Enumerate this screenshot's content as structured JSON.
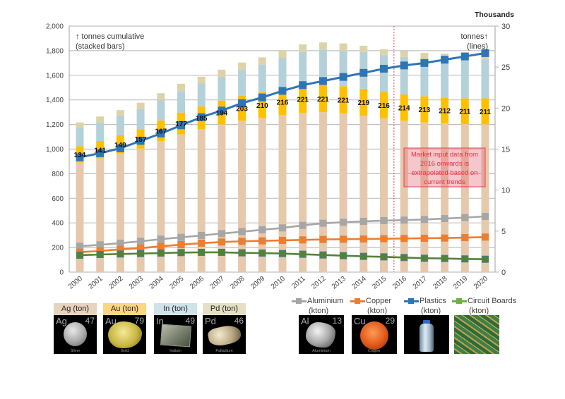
{
  "chart_data": {
    "type": "bar",
    "subtype": "stacked bars with line series on secondary axis",
    "categories": [
      "2000",
      "2001",
      "2002",
      "2003",
      "2004",
      "2005",
      "2006",
      "2007",
      "2008",
      "2009",
      "2010",
      "2011",
      "2012",
      "2013",
      "2014",
      "2015",
      "2016",
      "2017",
      "2018",
      "2019",
      "2020"
    ],
    "left_axis": {
      "ylim": [
        0,
        2000
      ],
      "ticks": [
        0,
        200,
        400,
        600,
        800,
        1000,
        1200,
        1400,
        1600,
        1800,
        2000
      ],
      "tick_labels": [
        "0",
        "200",
        "400",
        "600",
        "800",
        "1,000",
        "1,200",
        "1,400",
        "1,600",
        "1,800",
        "2,000"
      ],
      "title_lines": [
        "↑ tonnes cumulative",
        "(stacked bars)"
      ]
    },
    "right_axis": {
      "ylim": [
        0,
        30
      ],
      "ticks": [
        0,
        5,
        10,
        15,
        20,
        25,
        30
      ],
      "tick_labels": [
        "0",
        "5",
        "10",
        "15",
        "20",
        "25",
        "30"
      ],
      "units_label": "Thousands",
      "title_lines": [
        "tonnes↑",
        "(lines)"
      ]
    },
    "grid": true,
    "legend_position": "bottom",
    "bar_series": [
      {
        "name": "Ag (ton)",
        "color": "#e6c9ad",
        "values": [
          890,
          925,
          964,
          1004,
          1066,
          1120,
          1163,
          1200,
          1230,
          1253,
          1276,
          1295,
          1300,
          1290,
          1272,
          1250,
          1230,
          1216,
          1208,
          1203,
          1202
        ]
      },
      {
        "name": "Au (ton)",
        "color": "#ffc000",
        "values": [
          134,
          141,
          149,
          157,
          167,
          177,
          185,
          194,
          203,
          210,
          216,
          221,
          221,
          221,
          219,
          216,
          214,
          213,
          212,
          211,
          211
        ]
      },
      {
        "name": "In (ton)",
        "color": "#b4d1d9",
        "values": [
          147,
          151,
          156,
          164,
          167,
          174,
          185,
          193,
          211,
          224,
          250,
          276,
          289,
          289,
          299,
          296,
          305,
          301,
          310,
          311,
          312
        ]
      },
      {
        "name": "Pd (ton)",
        "color": "#dcd4a8",
        "values": [
          46,
          48,
          48,
          52,
          54,
          60,
          55,
          59,
          60,
          59,
          62,
          59,
          57,
          59,
          50,
          49,
          48,
          52,
          46,
          47,
          40
        ]
      }
    ],
    "bar_data_labels": {
      "series": "Au (ton)",
      "labels": [
        "134",
        "141",
        "149",
        "157",
        "167",
        "177",
        "185",
        "194",
        "203",
        "210",
        "216",
        "221",
        "221",
        "221",
        "219",
        "216",
        "214",
        "213",
        "212",
        "211",
        "211"
      ]
    },
    "line_series": [
      {
        "name": "Aluminium (kton)",
        "color": "#a6a6a6",
        "marker_edge": "#a6a6a6",
        "values": [
          3.16,
          3.33,
          3.53,
          3.76,
          4.02,
          4.24,
          4.47,
          4.7,
          4.93,
          5.16,
          5.39,
          5.7,
          5.96,
          6.08,
          6.19,
          6.28,
          6.34,
          6.42,
          6.53,
          6.65,
          6.79
        ]
      },
      {
        "name": "Copper (kton)",
        "color": "#ed7d31",
        "marker_edge": "#ed7d31",
        "values": [
          2.43,
          2.58,
          2.78,
          2.92,
          3.15,
          3.35,
          3.53,
          3.67,
          3.76,
          3.81,
          3.87,
          3.93,
          3.98,
          4.01,
          4.04,
          4.07,
          4.1,
          4.13,
          4.15,
          4.21,
          4.27
        ]
      },
      {
        "name": "Circuit Boards (kton)",
        "color": "#548235",
        "marker_edge": "#3e7f8f",
        "values": [
          2.06,
          2.15,
          2.21,
          2.26,
          2.32,
          2.38,
          2.41,
          2.41,
          2.35,
          2.32,
          2.26,
          2.18,
          2.09,
          2.0,
          1.92,
          1.86,
          1.78,
          1.69,
          1.66,
          1.61,
          1.57
        ]
      },
      {
        "name": "Plastics (kton)",
        "color": "#2e75b6",
        "marker_edge": "#2e75b6",
        "values": [
          14.0,
          14.5,
          15.1,
          16.0,
          16.9,
          17.9,
          18.9,
          19.7,
          20.6,
          21.3,
          22.1,
          22.8,
          23.3,
          23.8,
          24.3,
          24.8,
          25.2,
          25.5,
          25.9,
          26.3,
          26.7
        ]
      }
    ],
    "annotation": {
      "starts_at_category": "2016",
      "lines": [
        "Market input data from",
        "2016 onwards  is",
        "extrapolated based on",
        "current trends"
      ],
      "text_color": "#e8303a",
      "border_color": "#e84050"
    }
  },
  "legend": {
    "bars": [
      {
        "label": "Ag (ton)",
        "header_color": "#e8d3bf",
        "symbol": "Ag",
        "number": "47",
        "caption": "Silver"
      },
      {
        "label": "Au (ton)",
        "header_color": "#fcd684",
        "symbol": "Au",
        "number": "79",
        "caption": "Gold"
      },
      {
        "label": "In (ton)",
        "header_color": "#d0e3e9",
        "symbol": "In",
        "number": "49",
        "caption": "Indium"
      },
      {
        "label": "Pd (ton)",
        "header_color": "#e4e0c4",
        "symbol": "Pd",
        "number": "46",
        "caption": "Palladium"
      }
    ],
    "lines": [
      {
        "label": "Aluminium",
        "unit": "(kton)",
        "color": "#a6a6a6",
        "symbol": "Al",
        "number": "13",
        "caption": "Aluminium"
      },
      {
        "label": "Copper",
        "unit": "(kton)",
        "color": "#ed7d31",
        "symbol": "Cu",
        "number": "29",
        "caption": "Copper"
      },
      {
        "label": "Plastics",
        "unit": "(kton)",
        "color": "#2e75b6"
      },
      {
        "label": "Circuit Boards",
        "unit": "(kton)",
        "color": "#70ad47"
      }
    ]
  }
}
